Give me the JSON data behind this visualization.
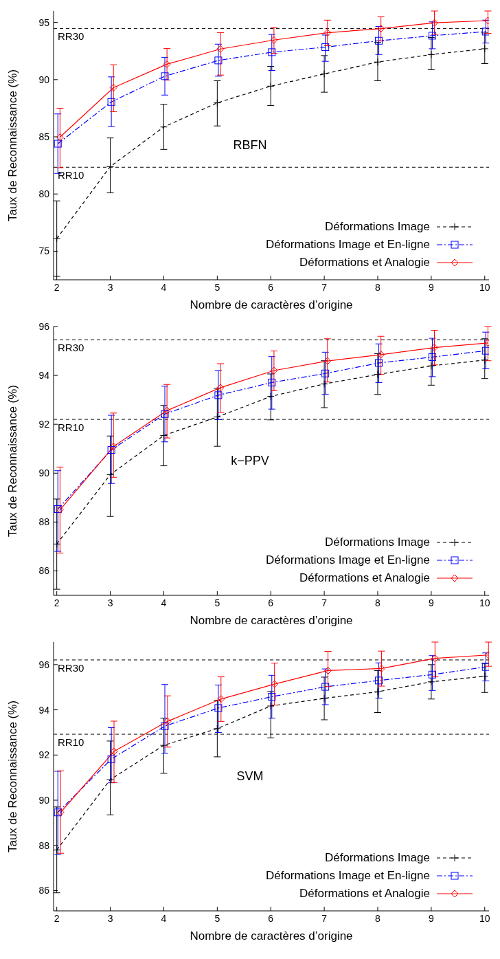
{
  "chart_data": [
    {
      "type": "line",
      "xlabel": "Nombre de caractères d’origine",
      "ylabel": "Taux de Reconnaissance (%)",
      "annotations": [
        "RBFN"
      ],
      "x": [
        2,
        3,
        4,
        5,
        6,
        7,
        8,
        9,
        10
      ],
      "xlim": [
        1.94,
        10.08
      ],
      "xticks": [
        2,
        3,
        4,
        5,
        6,
        7,
        8,
        9,
        10
      ],
      "ylim": [
        72.5,
        96
      ],
      "yticks": [
        75,
        80,
        85,
        90,
        95
      ],
      "legend": "bottom right",
      "ref_lines": [
        {
          "axis": "y",
          "value": 94.46,
          "label": "RR30",
          "color": "#000000",
          "line_style": "dashed"
        },
        {
          "axis": "y",
          "value": 82.34,
          "label": "RR10",
          "color": "#000000",
          "line_style": "dashed"
        }
      ],
      "series": [
        {
          "name": "Déformations Image",
          "color": "#000000",
          "marker": "cross",
          "line_style": "dashed",
          "values": [
            76.1,
            82.4,
            85.86,
            87.97,
            89.43,
            90.5,
            91.54,
            92.19,
            92.7
          ],
          "errors": [
            [
              72.8,
              79.4
            ],
            [
              80.1,
              84.9
            ],
            [
              83.9,
              87.84
            ],
            [
              85.95,
              89.9
            ],
            [
              87.73,
              91.16
            ],
            [
              88.9,
              92.1
            ],
            [
              89.9,
              93.27
            ],
            [
              90.86,
              93.68
            ],
            [
              91.4,
              94.08
            ]
          ]
        },
        {
          "name": "Déformations Image et En-ligne",
          "color": "#0000ff",
          "marker": "square",
          "line_style": "dashdot",
          "x": [
            2.02,
            3.02,
            4.02,
            5.02,
            6.02,
            7.02,
            8.02,
            9.02,
            10.02
          ],
          "values": [
            84.4,
            88.05,
            90.3,
            91.68,
            92.4,
            92.84,
            93.4,
            93.84,
            94.2
          ],
          "errors": [
            [
              81.8,
              87.0
            ],
            [
              85.9,
              90.24
            ],
            [
              88.65,
              91.95
            ],
            [
              90.3,
              93.1
            ],
            [
              90.8,
              93.95
            ],
            [
              91.6,
              93.9
            ],
            [
              92.2,
              94.65
            ],
            [
              92.7,
              95.05
            ],
            [
              93.2,
              95.2
            ]
          ]
        },
        {
          "name": "Déformations et Analogie",
          "color": "#ff0000",
          "marker": "diamond",
          "line_style": "solid",
          "x": [
            2.06,
            3.06,
            4.06,
            5.06,
            6.06,
            7.06,
            8.06,
            9.06,
            10.06
          ],
          "values": [
            84.97,
            89.3,
            91.35,
            92.68,
            93.46,
            94.1,
            94.46,
            94.97,
            95.16
          ],
          "errors": [
            [
              82.3,
              87.5
            ],
            [
              87.2,
              91.3
            ],
            [
              89.97,
              92.73
            ],
            [
              90.4,
              94.1
            ],
            [
              92.3,
              94.57
            ],
            [
              92.97,
              95.2
            ],
            [
              93.38,
              95.5
            ],
            [
              93.95,
              96
            ],
            [
              94.05,
              96
            ]
          ]
        }
      ]
    },
    {
      "type": "line",
      "xlabel": "Nombre de caractères d’origine",
      "ylabel": "Taux de Reconnaissance (%)",
      "annotations": [
        "k−PPV"
      ],
      "x": [
        2,
        3,
        4,
        5,
        6,
        7,
        8,
        9,
        10
      ],
      "xlim": [
        1.94,
        10.08
      ],
      "xticks": [
        2,
        3,
        4,
        5,
        6,
        7,
        8,
        9,
        10
      ],
      "ylim": [
        85,
        96
      ],
      "yticks": [
        86,
        88,
        90,
        92,
        94,
        96
      ],
      "legend": "bottom right",
      "ref_lines": [
        {
          "axis": "y",
          "value": 95.46,
          "label": "RR30",
          "color": "#000000",
          "line_style": "dashed"
        },
        {
          "axis": "y",
          "value": 92.2,
          "label": "RR10",
          "color": "#000000",
          "line_style": "dashed"
        }
      ],
      "series": [
        {
          "name": "Déformations Image",
          "color": "#000000",
          "marker": "cross",
          "line_style": "dashed",
          "values": [
            87.1,
            89.94,
            91.54,
            92.3,
            93.14,
            93.65,
            94.04,
            94.39,
            94.63
          ],
          "errors": [
            [
              85.25,
              88.94
            ],
            [
              88.23,
              91.52
            ],
            [
              90.3,
              92.77
            ],
            [
              91.1,
              93.47
            ],
            [
              92.18,
              94.06
            ],
            [
              92.68,
              94.6
            ],
            [
              93.22,
              94.89
            ],
            [
              93.6,
              95.11
            ],
            [
              93.87,
              95.5
            ]
          ]
        },
        {
          "name": "Déformations Image et En-ligne",
          "color": "#0000ff",
          "marker": "square",
          "line_style": "dashdot",
          "x": [
            2.02,
            3.02,
            4.02,
            5.02,
            6.02,
            7.02,
            8.02,
            9.02,
            10.02
          ],
          "values": [
            88.53,
            90.95,
            92.42,
            93.19,
            93.71,
            94.08,
            94.51,
            94.75,
            95.01
          ],
          "errors": [
            [
              86.8,
              90.1
            ],
            [
              89.58,
              92.37
            ],
            [
              91.28,
              93.56
            ],
            [
              92.19,
              94.2
            ],
            [
              92.62,
              94.77
            ],
            [
              93.22,
              94.95
            ],
            [
              93.71,
              95.29
            ],
            [
              93.95,
              95.52
            ],
            [
              94.27,
              95.77
            ]
          ]
        },
        {
          "name": "Déformations et Analogie",
          "color": "#ff0000",
          "marker": "diamond",
          "line_style": "solid",
          "x": [
            2.06,
            3.06,
            4.06,
            5.06,
            6.06,
            7.06,
            8.06,
            9.06,
            10.06
          ],
          "values": [
            88.5,
            91.09,
            92.56,
            93.5,
            94.2,
            94.59,
            94.85,
            95.14,
            95.33
          ],
          "errors": [
            [
              86.73,
              90.25
            ],
            [
              89.83,
              92.46
            ],
            [
              91.44,
              93.63
            ],
            [
              92.49,
              94.48
            ],
            [
              93.37,
              95.0
            ],
            [
              93.73,
              95.5
            ],
            [
              94.04,
              95.6
            ],
            [
              94.43,
              95.84
            ],
            [
              94.6,
              96
            ]
          ]
        }
      ]
    },
    {
      "type": "line",
      "xlabel": "Nombre de caractères d’origine",
      "ylabel": "Taux de Reconnaissance (%)",
      "annotations": [
        "SVM"
      ],
      "x": [
        2,
        3,
        4,
        5,
        6,
        7,
        8,
        9,
        10
      ],
      "xlim": [
        1.94,
        10.08
      ],
      "xticks": [
        2,
        3,
        4,
        5,
        6,
        7,
        8,
        9,
        10
      ],
      "ylim": [
        85.1,
        97
      ],
      "yticks": [
        86,
        88,
        90,
        92,
        94,
        96
      ],
      "legend": "bottom right",
      "ref_lines": [
        {
          "axis": "y",
          "value": 96.21,
          "label": "RR30",
          "color": "#000000",
          "line_style": "dashed"
        },
        {
          "axis": "y",
          "value": 92.92,
          "label": "RR10",
          "color": "#000000",
          "line_style": "dashed"
        }
      ],
      "series": [
        {
          "name": "Déformations Image",
          "color": "#000000",
          "marker": "cross",
          "line_style": "dashed",
          "values": [
            87.8,
            90.91,
            92.43,
            93.17,
            94.17,
            94.51,
            94.8,
            95.24,
            95.49
          ],
          "errors": [
            [
              85.9,
              89.7
            ],
            [
              89.35,
              92.62
            ],
            [
              91.19,
              93.63
            ],
            [
              91.92,
              94.43
            ],
            [
              92.76,
              94.81
            ],
            [
              93.56,
              95.45
            ],
            [
              93.88,
              95.74
            ],
            [
              94.48,
              96.0
            ],
            [
              94.77,
              96.07
            ]
          ]
        },
        {
          "name": "Déformations Image et En-ligne",
          "color": "#0000ff",
          "marker": "square",
          "line_style": "dashdot",
          "x": [
            2.02,
            3.02,
            4.02,
            5.02,
            6.02,
            7.02,
            8.02,
            9.02,
            10.02
          ],
          "values": [
            89.46,
            91.82,
            93.28,
            94.08,
            94.58,
            95.02,
            95.3,
            95.56,
            95.9
          ],
          "errors": [
            [
              87.6,
              91.28
            ],
            [
              90.77,
              93.21
            ],
            [
              92.08,
              95.12
            ],
            [
              93.0,
              95.1
            ],
            [
              93.63,
              95.53
            ],
            [
              94.23,
              95.81
            ],
            [
              94.52,
              96.08
            ],
            [
              94.86,
              96.4
            ],
            [
              95.28,
              96.52
            ]
          ]
        },
        {
          "name": "Déformations et Analogie",
          "color": "#ff0000",
          "marker": "diamond",
          "line_style": "solid",
          "x": [
            2.07,
            3.07,
            4.07,
            5.07,
            6.07,
            7.07,
            8.07,
            9.07,
            10.07
          ],
          "values": [
            89.46,
            92.16,
            93.49,
            94.48,
            95.14,
            95.74,
            95.83,
            96.28,
            96.43
          ],
          "errors": [
            [
              87.65,
              91.3
            ],
            [
              90.78,
              93.5
            ],
            [
              92.35,
              94.62
            ],
            [
              93.49,
              95.46
            ],
            [
              94.21,
              96.07
            ],
            [
              95.03,
              96.59
            ],
            [
              95.05,
              96.6
            ],
            [
              95.46,
              97
            ],
            [
              95.93,
              97
            ]
          ]
        }
      ]
    }
  ]
}
